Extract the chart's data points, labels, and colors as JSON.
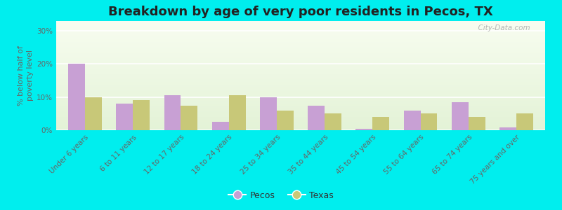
{
  "title": "Breakdown by age of very poor residents in Pecos, TX",
  "ylabel": "% below half of\npoverty level",
  "categories": [
    "Under 6 years",
    "6 to 11 years",
    "12 to 17 years",
    "18 to 24 years",
    "25 to 34 years",
    "35 to 44 years",
    "45 to 54 years",
    "55 to 64 years",
    "65 to 74 years",
    "75 years and over"
  ],
  "pecos_values": [
    20,
    8,
    10.5,
    2.5,
    10,
    7.5,
    0.5,
    6,
    8.5,
    0.8
  ],
  "texas_values": [
    10,
    9,
    7.5,
    10.5,
    6,
    5,
    4,
    5,
    4,
    5
  ],
  "pecos_color": "#c8a0d4",
  "texas_color": "#c8c878",
  "background_color": "#00eeee",
  "plot_bg_color": "#eef5e8",
  "ylim": [
    0,
    33
  ],
  "yticks": [
    0,
    10,
    20,
    30
  ],
  "ytick_labels": [
    "0%",
    "10%",
    "20%",
    "30%"
  ],
  "bar_width": 0.35,
  "title_fontsize": 13,
  "axis_label_fontsize": 8,
  "tick_fontsize": 7.5,
  "watermark": "  City-Data.com",
  "legend_pecos": "Pecos",
  "legend_texas": "Texas"
}
